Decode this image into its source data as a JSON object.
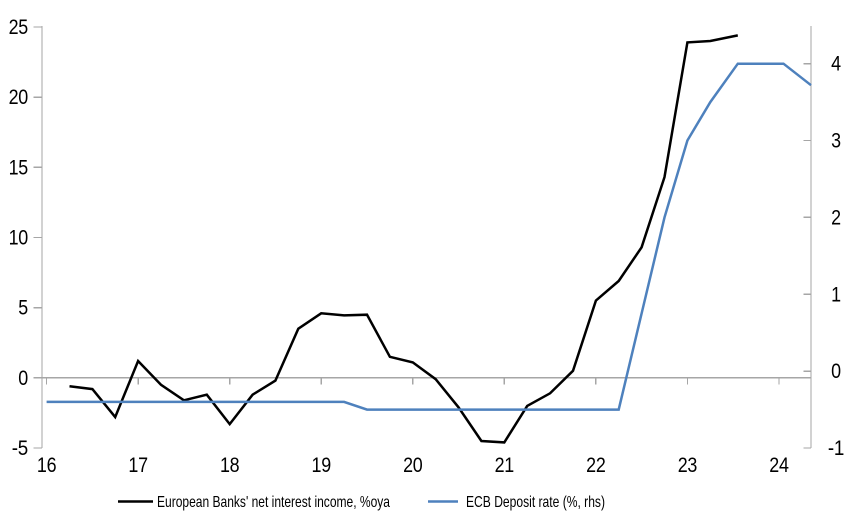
{
  "chart_data": {
    "type": "line",
    "title": "",
    "x_axis": {
      "range": [
        15.95,
        24.35
      ],
      "tick_values": [
        16,
        17,
        18,
        19,
        20,
        21,
        22,
        23,
        24
      ],
      "tick_labels": [
        "16",
        "17",
        "18",
        "19",
        "20",
        "21",
        "22",
        "23",
        "24"
      ]
    },
    "left_axis": {
      "range": [
        -5,
        25.07
      ],
      "tick_values": [
        -5,
        0,
        5,
        10,
        15,
        20,
        25
      ],
      "tick_labels": [
        "-5",
        "0",
        "5",
        "10",
        "15",
        "20",
        "25"
      ]
    },
    "right_axis": {
      "range": [
        -1,
        4.49
      ],
      "tick_values": [
        -1,
        0,
        1,
        2,
        3,
        4
      ],
      "tick_labels": [
        "-1",
        "0",
        "1",
        "2",
        "3",
        "4"
      ]
    },
    "gridlines": {
      "zero_line_value": 0
    },
    "legend_position": "bottom",
    "series": [
      {
        "name": "European Banks' net interest income, %oya",
        "axis": "left",
        "color": "#000000",
        "points": [
          [
            16.25,
            -0.6
          ],
          [
            16.5,
            -0.8
          ],
          [
            16.75,
            -2.8
          ],
          [
            17.0,
            1.2
          ],
          [
            17.25,
            -0.5
          ],
          [
            17.5,
            -1.6
          ],
          [
            17.75,
            -1.2
          ],
          [
            18.0,
            -3.3
          ],
          [
            18.25,
            -1.2
          ],
          [
            18.5,
            -0.2
          ],
          [
            18.75,
            3.5
          ],
          [
            19.0,
            4.6
          ],
          [
            19.25,
            4.45
          ],
          [
            19.5,
            4.5
          ],
          [
            19.75,
            1.5
          ],
          [
            20.0,
            1.1
          ],
          [
            20.25,
            -0.1
          ],
          [
            20.5,
            -2.1
          ],
          [
            20.75,
            -4.5
          ],
          [
            21.0,
            -4.6
          ],
          [
            21.25,
            -2.0
          ],
          [
            21.5,
            -1.1
          ],
          [
            21.75,
            0.5
          ],
          [
            22.0,
            5.5
          ],
          [
            22.25,
            6.9
          ],
          [
            22.5,
            9.3
          ],
          [
            22.75,
            14.3
          ],
          [
            23.0,
            23.9
          ],
          [
            23.25,
            24.0
          ],
          [
            23.55,
            24.4
          ]
        ]
      },
      {
        "name": "ECB Deposit rate (%, rhs)",
        "axis": "right",
        "color": "#4E81BD",
        "points": [
          [
            16.0,
            -0.4
          ],
          [
            19.25,
            -0.4
          ],
          [
            19.5,
            -0.5
          ],
          [
            22.25,
            -0.5
          ],
          [
            22.5,
            0.75
          ],
          [
            22.75,
            2.0
          ],
          [
            23.0,
            3.0
          ],
          [
            23.25,
            3.5
          ],
          [
            23.55,
            4.0
          ],
          [
            24.05,
            4.0
          ],
          [
            24.35,
            3.72
          ]
        ]
      }
    ]
  },
  "colors": {
    "axis": "#A6A6A6",
    "text": "#000000",
    "background": "#FFFFFF",
    "nii_line": "#000000",
    "ecb_line": "#4E81BD"
  }
}
